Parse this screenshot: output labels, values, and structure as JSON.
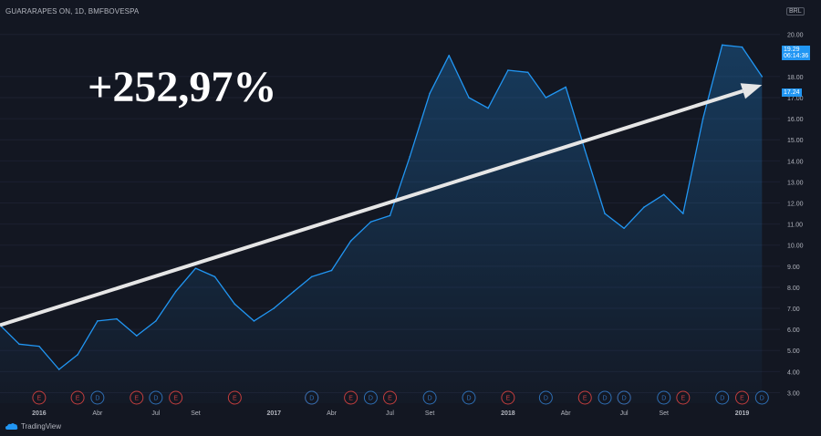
{
  "header": {
    "symbol": "GUARARAPES ON, 1D, BMFBOVESPA",
    "currency": "BRL"
  },
  "annotation": {
    "big_label": "+252,97%"
  },
  "footer": {
    "brand": "TradingView"
  },
  "price_tags": [
    {
      "value": "19.29",
      "sub": "06:14:36"
    },
    {
      "value": "17.24"
    }
  ],
  "colors": {
    "background": "#131722",
    "line": "#2196f3",
    "arrow": "#e6e6e6",
    "event_e": "#c43e3e",
    "event_d": "#2e6fb5"
  },
  "chart_data": {
    "type": "line",
    "title": "",
    "xlabel": "",
    "ylabel": "",
    "ylim": [
      2.5,
      21.2
    ],
    "y_ticks": [
      "3.00",
      "4.00",
      "5.00",
      "6.00",
      "7.00",
      "8.00",
      "9.00",
      "10.00",
      "11.00",
      "12.00",
      "13.00",
      "14.00",
      "15.00",
      "16.00",
      "17.00",
      "18.00",
      "20.00"
    ],
    "y_tick_values": [
      3,
      4,
      5,
      6,
      7,
      8,
      9,
      10,
      11,
      12,
      13,
      14,
      15,
      16,
      17,
      18,
      20
    ],
    "x_ticks": [
      "2016",
      "Abr",
      "Jul",
      "Set",
      "2017",
      "Abr",
      "Jul",
      "Set",
      "2018",
      "Abr",
      "Jul",
      "Set",
      "2019"
    ],
    "x_tick_dates": [
      "2016-01",
      "2016-04",
      "2016-07",
      "2016-09",
      "2017-01",
      "2017-04",
      "2017-07",
      "2017-09",
      "2018-01",
      "2018-04",
      "2018-07",
      "2018-09",
      "2019-01"
    ],
    "series": [
      {
        "x": [
          "2015-11",
          "2015-12",
          "2016-01",
          "2016-02",
          "2016-03",
          "2016-04",
          "2016-05",
          "2016-06",
          "2016-07",
          "2016-08",
          "2016-09",
          "2016-10",
          "2016-11",
          "2016-12",
          "2017-01",
          "2017-02",
          "2017-03",
          "2017-04",
          "2017-05",
          "2017-06",
          "2017-07",
          "2017-08",
          "2017-09",
          "2017-10",
          "2017-11",
          "2017-12",
          "2018-01",
          "2018-02",
          "2018-03",
          "2018-04",
          "2018-05",
          "2018-06",
          "2018-07",
          "2018-08",
          "2018-09",
          "2018-10",
          "2018-11",
          "2018-12",
          "2019-01",
          "2019-02"
        ],
        "y": [
          6.2,
          5.3,
          5.2,
          4.1,
          4.8,
          6.4,
          6.5,
          5.7,
          6.4,
          7.8,
          8.9,
          8.5,
          7.2,
          6.4,
          7.0,
          7.8,
          8.5,
          8.8,
          10.2,
          11.1,
          11.4,
          14.2,
          17.2,
          19.0,
          17.0,
          16.5,
          18.3,
          18.2,
          17.0,
          17.5,
          14.5,
          11.5,
          10.8,
          11.8,
          12.4,
          11.5,
          16.0,
          19.5,
          19.4,
          18.0
        ]
      }
    ],
    "events": [
      {
        "label": "E",
        "date": "2016-01"
      },
      {
        "label": "E",
        "date": "2016-03"
      },
      {
        "label": "D",
        "date": "2016-04"
      },
      {
        "label": "E",
        "date": "2016-06"
      },
      {
        "label": "D",
        "date": "2016-07"
      },
      {
        "label": "E",
        "date": "2016-08"
      },
      {
        "label": "E",
        "date": "2016-11"
      },
      {
        "label": "E",
        "date": "2017-03"
      },
      {
        "label": "D",
        "date": "2017-03"
      },
      {
        "label": "E",
        "date": "2017-05"
      },
      {
        "label": "D",
        "date": "2017-06"
      },
      {
        "label": "E",
        "date": "2017-07"
      },
      {
        "label": "D",
        "date": "2017-09"
      },
      {
        "label": "D",
        "date": "2017-11"
      },
      {
        "label": "E",
        "date": "2018-01"
      },
      {
        "label": "D",
        "date": "2018-03"
      },
      {
        "label": "E",
        "date": "2018-05"
      },
      {
        "label": "D",
        "date": "2018-06"
      },
      {
        "label": "E",
        "date": "2018-07"
      },
      {
        "label": "D",
        "date": "2018-07"
      },
      {
        "label": "D",
        "date": "2018-09"
      },
      {
        "label": "E",
        "date": "2018-10"
      },
      {
        "label": "D",
        "date": "2018-12"
      },
      {
        "label": "E",
        "date": "2019-01"
      },
      {
        "label": "D",
        "date": "2019-02"
      }
    ],
    "trend_arrow": {
      "from": {
        "date": "2015-11",
        "value": 6.2
      },
      "to": {
        "date": "2019-02",
        "value": 17.6
      }
    }
  }
}
